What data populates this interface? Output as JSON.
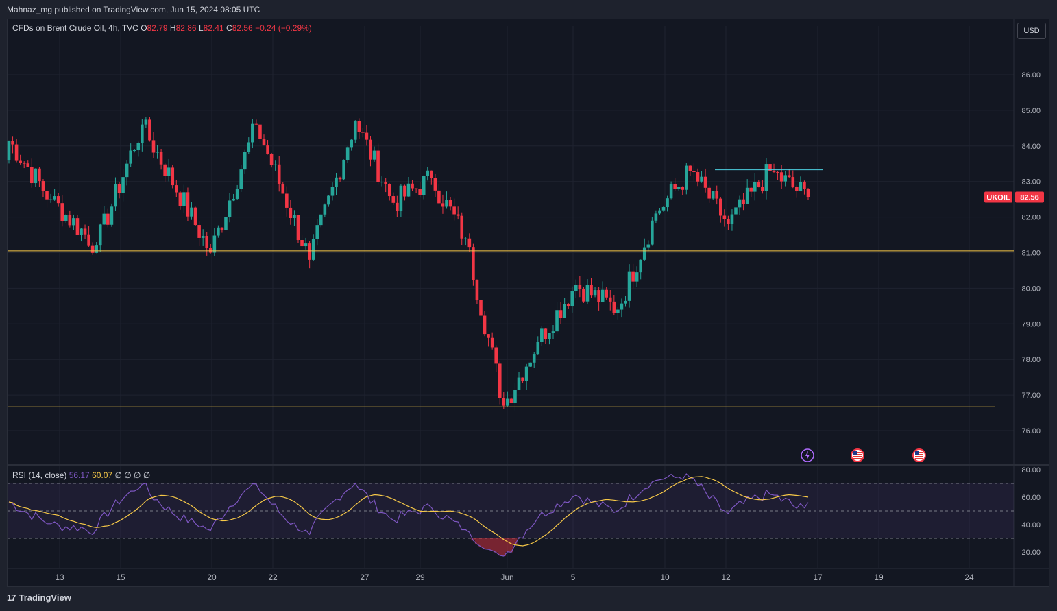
{
  "header": {
    "publisher": "Mahnaz_mg published on TradingView.com, Jun 15, 2024 08:05 UTC"
  },
  "legend": {
    "symbol": "CFDs on Brent Crude Oil, 4h, TVC",
    "o_label": "O",
    "o_value": "82.79",
    "h_label": "H",
    "h_value": "82.86",
    "l_label": "L",
    "l_value": "82.41",
    "c_label": "C",
    "c_value": "82.56",
    "change": "−0.24 (−0.29%)"
  },
  "currency_button": "USD",
  "price_tag": {
    "symbol": "UKOIL",
    "price": "82.56"
  },
  "rsi_legend": {
    "label": "RSI (14, close)",
    "rsi_value": "56.17",
    "ma_value": "60.07",
    "extra": "∅ ∅ ∅ ∅"
  },
  "footer": {
    "logo_text": "TradingView"
  },
  "event_icons": [
    "lightning-icon",
    "us-flag-icon",
    "us-flag-icon"
  ],
  "colors": {
    "up": "#26a69a",
    "down": "#f23645",
    "rsi": "#7e57c2",
    "rsi_ma": "#f7c948",
    "support": "#f7c948",
    "resistance": "#4dd0e1"
  },
  "chart_data": [
    {
      "type": "candlestick",
      "title": "CFDs on Brent Crude Oil, 4h, TVC",
      "ylim": [
        75.0,
        87.0
      ],
      "y_ticks": [
        "76.00",
        "77.00",
        "78.00",
        "79.00",
        "80.00",
        "81.00",
        "82.00",
        "83.00",
        "84.00",
        "85.00",
        "86.00"
      ],
      "x_ticks": [
        "13",
        "15",
        "20",
        "22",
        "27",
        "29",
        "Jun",
        "5",
        "10",
        "12",
        "17",
        "19",
        "24"
      ],
      "last_price": 82.56,
      "horizontal_lines": [
        {
          "name": "support-upper",
          "price": 81.05
        },
        {
          "name": "support-lower",
          "price": 76.67
        },
        {
          "name": "resistance",
          "price": 83.33
        }
      ],
      "key_prices": [
        84.3,
        82.5,
        81.2,
        84.6,
        81.0,
        84.6,
        80.8,
        84.7,
        82.4,
        83.1,
        81.4,
        76.7,
        78.5,
        80.1,
        79.4,
        82.1,
        83.3,
        81.8,
        83.3,
        82.56
      ]
    },
    {
      "type": "line",
      "title": "RSI (14, close)",
      "ylim": [
        10,
        85
      ],
      "y_ticks": [
        "20.00",
        "40.00",
        "60.00",
        "80.00"
      ],
      "bands": [
        30,
        50,
        70
      ],
      "last_rsi": 56.17,
      "last_ma": 60.07
    }
  ]
}
